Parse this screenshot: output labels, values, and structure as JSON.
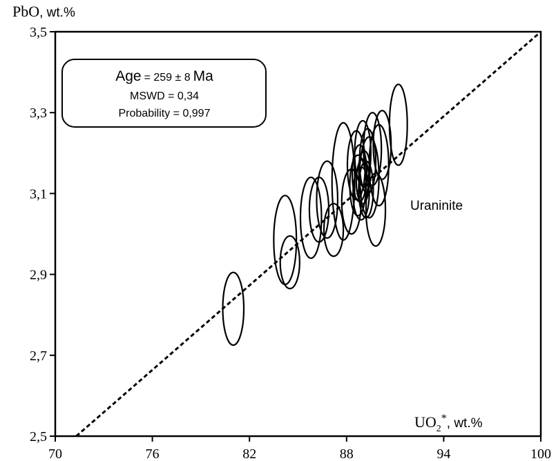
{
  "chart_data": {
    "type": "scatter",
    "title": "",
    "xlabel": {
      "main": "UO",
      "sub": "2",
      "sup": "*",
      "unit": ", wt.%"
    },
    "ylabel": {
      "main": "PbO",
      "unit": ", wt.%"
    },
    "xlim": [
      70,
      100
    ],
    "ylim": [
      2.5,
      3.5
    ],
    "x_ticks": [
      70,
      76,
      82,
      88,
      94,
      100
    ],
    "x_tick_labels": [
      "70",
      "76",
      "82",
      "88",
      "94",
      "100"
    ],
    "y_ticks": [
      2.5,
      2.7,
      2.9,
      3.1,
      3.3,
      3.5
    ],
    "y_tick_labels": [
      "2,5",
      "2,7",
      "2,9",
      "3,1",
      "3,3",
      "3,5"
    ],
    "grid": false,
    "reference_line": {
      "style": "dashed",
      "points": [
        [
          71.3,
          2.5
        ],
        [
          100,
          3.5
        ]
      ]
    },
    "annotation_box": {
      "age_prefix": "Age",
      "age_value": "= 259 ± 8",
      "age_unit": "Ma",
      "mswd": "MSWD = 0,34",
      "probability": "Probability = 0,997"
    },
    "series_label": "Uraninite",
    "error_ellipses": [
      {
        "x": 81.0,
        "y": 2.815,
        "sx": 0.65,
        "sy": 0.09
      },
      {
        "x": 84.2,
        "y": 2.985,
        "sx": 0.7,
        "sy": 0.11
      },
      {
        "x": 84.5,
        "y": 2.93,
        "sx": 0.6,
        "sy": 0.065
      },
      {
        "x": 85.8,
        "y": 3.04,
        "sx": 0.65,
        "sy": 0.1
      },
      {
        "x": 86.3,
        "y": 3.06,
        "sx": 0.6,
        "sy": 0.08
      },
      {
        "x": 86.8,
        "y": 3.085,
        "sx": 0.65,
        "sy": 0.095
      },
      {
        "x": 87.2,
        "y": 3.01,
        "sx": 0.6,
        "sy": 0.065
      },
      {
        "x": 87.8,
        "y": 3.13,
        "sx": 0.7,
        "sy": 0.145
      },
      {
        "x": 88.3,
        "y": 3.08,
        "sx": 0.6,
        "sy": 0.08
      },
      {
        "x": 88.6,
        "y": 3.17,
        "sx": 0.55,
        "sy": 0.085
      },
      {
        "x": 88.7,
        "y": 3.12,
        "sx": 0.5,
        "sy": 0.075
      },
      {
        "x": 88.8,
        "y": 3.15,
        "sx": 0.45,
        "sy": 0.07
      },
      {
        "x": 88.9,
        "y": 3.1,
        "sx": 0.5,
        "sy": 0.065
      },
      {
        "x": 89.0,
        "y": 3.13,
        "sx": 0.4,
        "sy": 0.055
      },
      {
        "x": 89.0,
        "y": 3.2,
        "sx": 0.5,
        "sy": 0.08
      },
      {
        "x": 89.1,
        "y": 3.16,
        "sx": 0.35,
        "sy": 0.045
      },
      {
        "x": 89.2,
        "y": 3.11,
        "sx": 0.45,
        "sy": 0.07
      },
      {
        "x": 89.3,
        "y": 3.18,
        "sx": 0.5,
        "sy": 0.08
      },
      {
        "x": 89.4,
        "y": 3.14,
        "sx": 0.6,
        "sy": 0.1
      },
      {
        "x": 89.6,
        "y": 3.21,
        "sx": 0.55,
        "sy": 0.09
      },
      {
        "x": 89.8,
        "y": 3.06,
        "sx": 0.6,
        "sy": 0.09
      },
      {
        "x": 90.0,
        "y": 3.17,
        "sx": 0.6,
        "sy": 0.1
      },
      {
        "x": 90.2,
        "y": 3.22,
        "sx": 0.55,
        "sy": 0.085
      },
      {
        "x": 91.2,
        "y": 3.27,
        "sx": 0.55,
        "sy": 0.1
      }
    ]
  }
}
